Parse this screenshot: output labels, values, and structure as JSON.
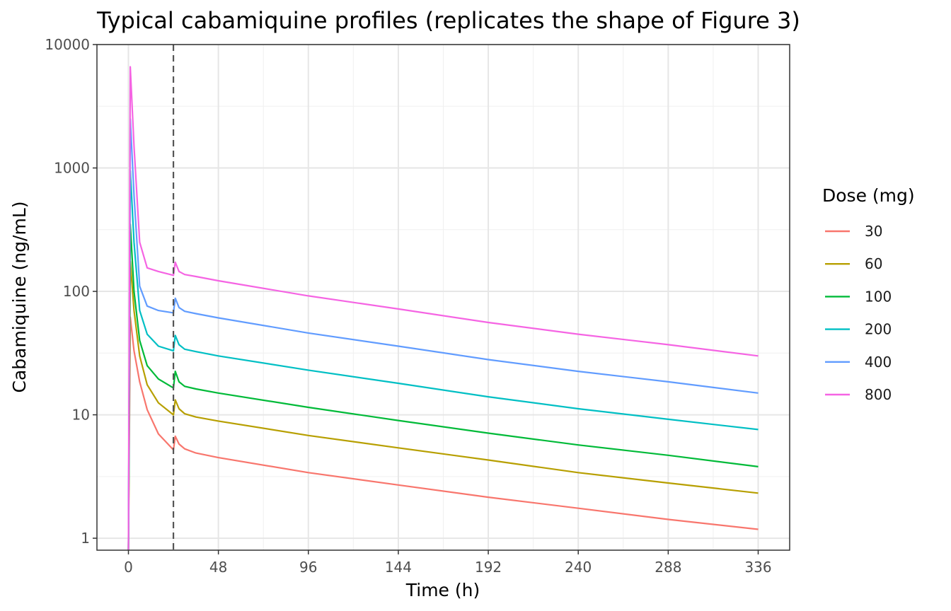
{
  "chart_data": {
    "type": "line",
    "title": "Typical cabamiquine profiles (replicates the shape of Figure 3)",
    "xlabel": "Time (h)",
    "ylabel": "Cabamiquine (ng/mL)",
    "x_ticks": [
      0,
      48,
      96,
      144,
      192,
      240,
      288,
      336
    ],
    "x_tick_labels": [
      "0",
      "48",
      "96",
      "144",
      "192",
      "240",
      "288",
      "336"
    ],
    "xlim": [
      -16.8,
      352.8
    ],
    "y_scale": "log10",
    "y_ticks": [
      1,
      10,
      100,
      1000,
      10000
    ],
    "y_tick_labels": [
      "1",
      "10",
      "100",
      "1000",
      "10000"
    ],
    "ylim": [
      0.8,
      10000
    ],
    "grid": true,
    "reference_line": {
      "x": 24,
      "style": "dashed",
      "color": "#555555"
    },
    "legend": {
      "title": "Dose (mg)",
      "position": "right"
    },
    "series": [
      {
        "name": "30",
        "color": "#F8766D",
        "x": [
          0,
          1,
          3,
          6,
          10,
          16,
          24,
          25,
          27,
          30,
          36,
          48,
          96,
          144,
          192,
          240,
          288,
          336
        ],
        "y": [
          0.8,
          62,
          33,
          18.5,
          11,
          7,
          5.2,
          6.7,
          5.8,
          5.3,
          4.9,
          4.5,
          3.4,
          2.7,
          2.15,
          1.75,
          1.42,
          1.18
        ]
      },
      {
        "name": "60",
        "color": "#B79F00",
        "x": [
          0,
          1,
          3,
          6,
          10,
          16,
          24,
          25,
          27,
          30,
          36,
          48,
          96,
          144,
          192,
          240,
          288,
          336
        ],
        "y": [
          0.8,
          175,
          70,
          30,
          17.5,
          12.5,
          10,
          13.2,
          11.2,
          10.2,
          9.6,
          8.9,
          6.8,
          5.4,
          4.3,
          3.4,
          2.8,
          2.32
        ]
      },
      {
        "name": "100",
        "color": "#00BA38",
        "x": [
          0,
          1,
          3,
          6,
          10,
          16,
          24,
          25,
          27,
          30,
          36,
          48,
          96,
          144,
          192,
          240,
          288,
          336
        ],
        "y": [
          0.8,
          350,
          100,
          40,
          25,
          19.5,
          16.5,
          22.5,
          18.5,
          17,
          16.2,
          15,
          11.5,
          9,
          7.1,
          5.7,
          4.7,
          3.8
        ]
      },
      {
        "name": "200",
        "color": "#00BFC4",
        "x": [
          0,
          1,
          3,
          6,
          10,
          16,
          24,
          25,
          27,
          30,
          36,
          48,
          96,
          144,
          192,
          240,
          288,
          336
        ],
        "y": [
          0.8,
          950,
          250,
          70,
          45,
          36,
          33,
          44,
          37,
          34,
          32.5,
          30,
          23,
          18,
          14,
          11.2,
          9.2,
          7.6
        ]
      },
      {
        "name": "400",
        "color": "#619CFF",
        "x": [
          0,
          1,
          3,
          6,
          10,
          16,
          24,
          25,
          27,
          30,
          36,
          48,
          96,
          144,
          192,
          240,
          288,
          336
        ],
        "y": [
          0.8,
          2500,
          600,
          110,
          76,
          70,
          67,
          88,
          74,
          69,
          66,
          61,
          46,
          36,
          28,
          22.5,
          18.5,
          15
        ]
      },
      {
        "name": "800",
        "color": "#F564E3",
        "x": [
          0,
          1,
          3,
          6,
          10,
          16,
          24,
          25,
          27,
          30,
          36,
          48,
          96,
          144,
          192,
          240,
          288,
          336
        ],
        "y": [
          0.8,
          6600,
          1500,
          250,
          155,
          145,
          135,
          172,
          145,
          137,
          132,
          122,
          92,
          72,
          56,
          45,
          37,
          30
        ]
      }
    ]
  }
}
